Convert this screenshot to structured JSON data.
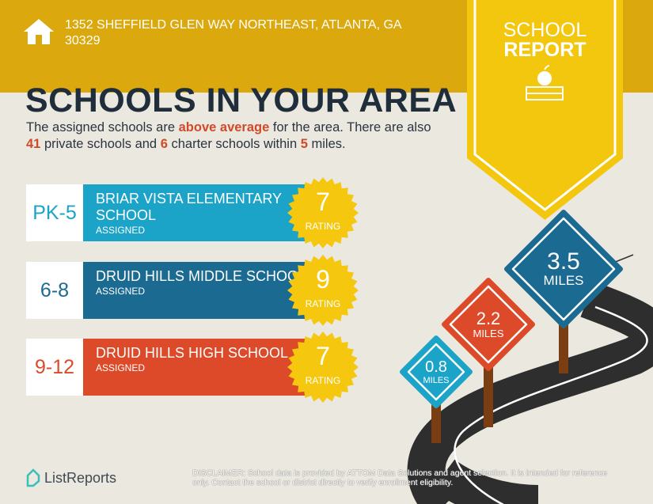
{
  "header": {
    "address_line1": "1352 SHEFFIELD GLEN WAY NORTHEAST, ATLANTA, GA",
    "address_line2": "30329",
    "badge_line1": "SCHOOL",
    "badge_line2": "REPORT",
    "icon": "house-icon"
  },
  "title": "SCHOOLS IN YOUR AREA",
  "intro": {
    "p1": "The assigned schools are ",
    "highlight1": "above average",
    "p2": " for the area. There are also ",
    "highlight2": "41",
    "p3": " private schools and ",
    "highlight3": "6",
    "p4": " charter schools within ",
    "highlight4": "5",
    "p5": " miles."
  },
  "schools": [
    {
      "grade": "PK-5",
      "name": "BRIAR VISTA ELEMENTARY SCHOOL",
      "status": "ASSIGNED",
      "rating": "7",
      "rating_label": "RATING",
      "color": "#1ba3c8"
    },
    {
      "grade": "6-8",
      "name": "DRUID HILLS MIDDLE SCHOOL",
      "status": "ASSIGNED",
      "rating": "9",
      "rating_label": "RATING",
      "color": "#1b6a91"
    },
    {
      "grade": "9-12",
      "name": "DRUID HILLS HIGH SCHOOL",
      "status": "ASSIGNED",
      "rating": "7",
      "rating_label": "RATING",
      "color": "#dc4a29"
    }
  ],
  "signs": [
    {
      "distance": "0.8",
      "unit": "MILES",
      "color": "#1ba3c8"
    },
    {
      "distance": "2.2",
      "unit": "MILES",
      "color": "#dc4a29"
    },
    {
      "distance": "3.5",
      "unit": "MILES",
      "color": "#1b6a91"
    }
  ],
  "footer": {
    "logo": "ListReports",
    "disclaimer_label": "DISCLAIMER:",
    "disclaimer": " School data is provided by ATTOM Data Solutions and agent selection. It is intended for reference only. Contact the school or district directly to verify enrollment eligibility."
  },
  "colors": {
    "gold": "#dba80e",
    "badge": "#f2c70e",
    "background": "#ebe8df",
    "seal": "#f5c80f"
  }
}
